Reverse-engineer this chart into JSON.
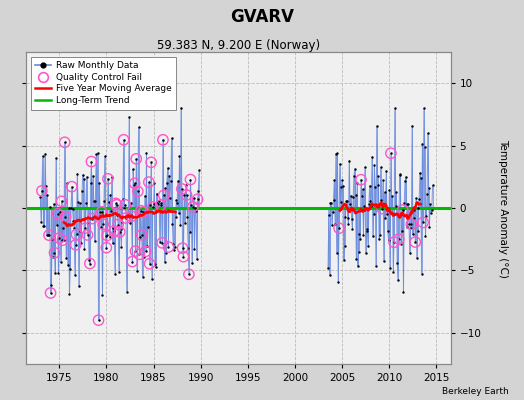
{
  "title": "GVARV",
  "subtitle": "59.383 N, 9.200 E (Norway)",
  "ylabel": "Temperature Anomaly (°C)",
  "attribution": "Berkeley Earth",
  "ylim": [
    -12.5,
    12.5
  ],
  "xlim": [
    1971.5,
    2016.5
  ],
  "xticks": [
    1975,
    1980,
    1985,
    1990,
    1995,
    2000,
    2005,
    2010,
    2015
  ],
  "yticks": [
    -10,
    -5,
    0,
    5,
    10
  ],
  "bg_color": "#d4d4d4",
  "plot_bg_color": "#f0f0f0",
  "grid_color": "#bbbbbb",
  "raw_line_color": "#6688dd",
  "raw_dot_color": "#000000",
  "qc_color": "#ff55cc",
  "moving_avg_color": "#ff0000",
  "trend_color": "#00bb00",
  "period1_start": 1973.0,
  "period1_end": 1989.9,
  "period2_start": 2003.5,
  "period2_end": 2014.6
}
